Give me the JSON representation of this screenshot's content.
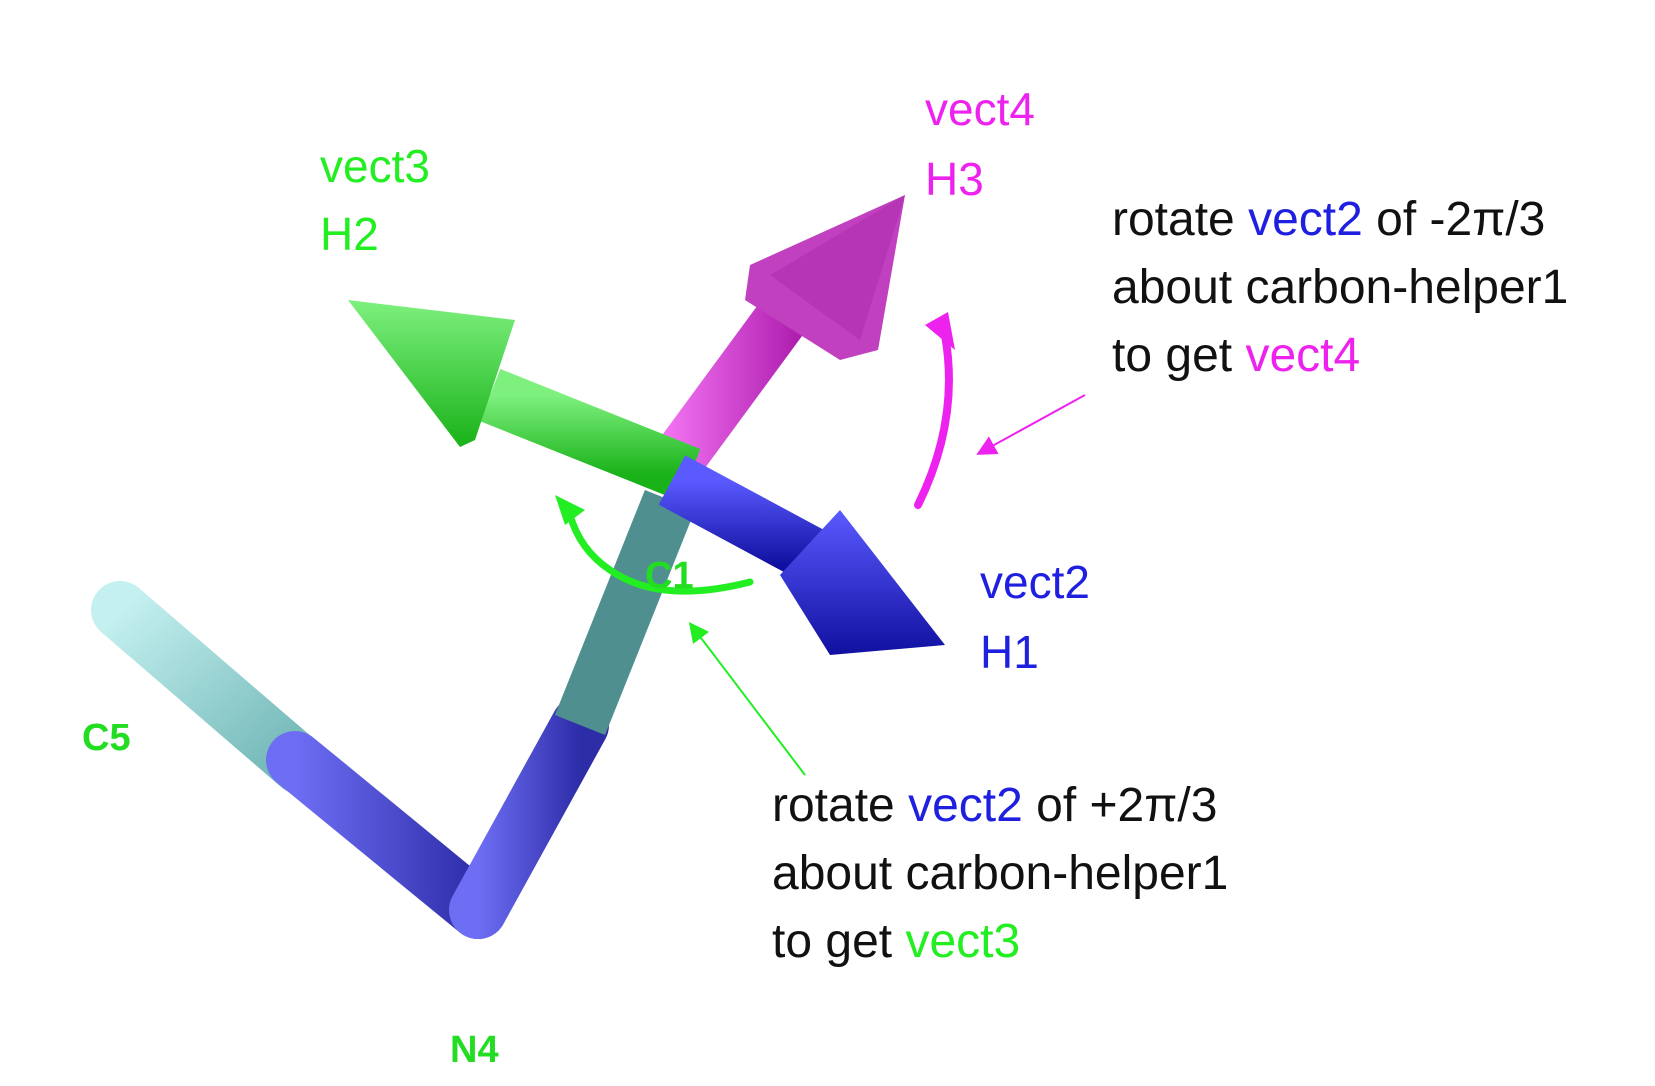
{
  "atoms": {
    "c1": "C1",
    "c5": "C5",
    "n4": "N4"
  },
  "vectors": {
    "vect2": {
      "name": "vect2",
      "atom": "H1",
      "color": "#1f1fe0"
    },
    "vect3": {
      "name": "vect3",
      "atom": "H2",
      "color": "#22ee22"
    },
    "vect4": {
      "name": "vect4",
      "atom": "H3",
      "color": "#ee22ee"
    }
  },
  "annotations": {
    "vect4_note": {
      "line1_pre": "rotate ",
      "line1_vec": "vect2",
      "line1_post": " of -2π/3",
      "line2": "about carbon-helper1",
      "line3_pre": "to get ",
      "line3_vec": "vect4"
    },
    "vect3_note": {
      "line1_pre": "rotate ",
      "line1_vec": "vect2",
      "line1_post": " of +2π/3",
      "line2": "about carbon-helper1",
      "line3_pre": "to get ",
      "line3_vec": "vect3"
    }
  },
  "colors": {
    "atom_label": "#22dd22",
    "bond_cyan": "#8fd6d6",
    "bond_blue": "#4a4ad8",
    "bond_teal": "#4f8f8f"
  }
}
